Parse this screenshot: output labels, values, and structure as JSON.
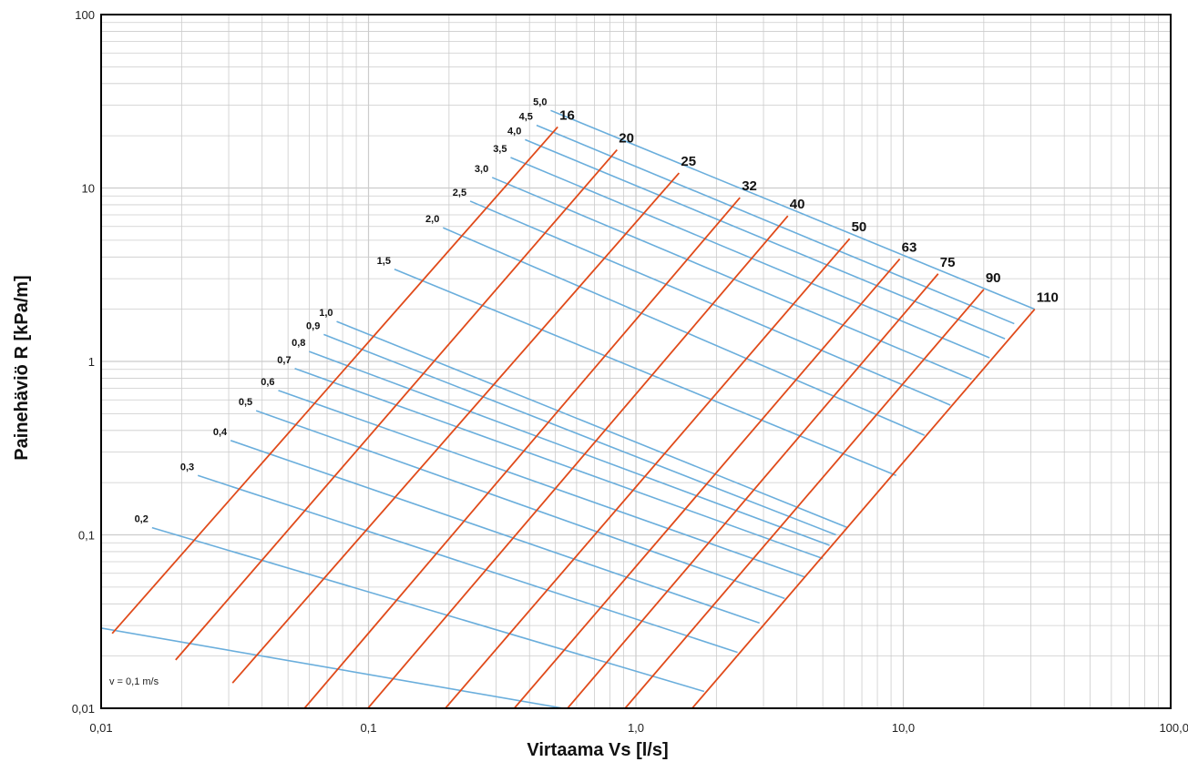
{
  "chart_data": {
    "type": "line",
    "xlabel": "Virtaama Vs [l/s]",
    "ylabel": "Painehäviö  R [kPa/m]",
    "x_scale": "log",
    "y_scale": "log",
    "xlim": [
      0.01,
      100
    ],
    "ylim": [
      0.01,
      100
    ],
    "x_tick_labels": [
      "0,01",
      "0,1",
      "1,0",
      "10,0",
      "100,0"
    ],
    "y_tick_labels": [
      "0,01",
      "0,1",
      "1",
      "10",
      "100"
    ],
    "grid": true,
    "note": "v = 0,1 m/s",
    "colors": {
      "pipe": "#e04a1a",
      "velocity": "#6aaedc",
      "grid": "#cccccc",
      "frame": "#000000"
    },
    "velocity_series": [
      {
        "label": "",
        "x": [
          0.01,
          0.7
        ],
        "y": [
          0.029,
          0.0093
        ]
      },
      {
        "label": "0,2",
        "x": [
          0.0155,
          1.8
        ],
        "y": [
          0.11,
          0.0125
        ]
      },
      {
        "label": "0,3",
        "x": [
          0.023,
          2.4
        ],
        "y": [
          0.22,
          0.021
        ]
      },
      {
        "label": "0,4",
        "x": [
          0.0305,
          2.9
        ],
        "y": [
          0.35,
          0.031
        ]
      },
      {
        "label": "0,5",
        "x": [
          0.038,
          3.6
        ],
        "y": [
          0.52,
          0.043
        ]
      },
      {
        "label": "0,6",
        "x": [
          0.046,
          4.3
        ],
        "y": [
          0.68,
          0.057
        ]
      },
      {
        "label": "0,7",
        "x": [
          0.053,
          5.0
        ],
        "y": [
          0.91,
          0.073
        ]
      },
      {
        "label": "0,8",
        "x": [
          0.06,
          5.3
        ],
        "y": [
          1.14,
          0.087
        ]
      },
      {
        "label": "0,9",
        "x": [
          0.068,
          5.6
        ],
        "y": [
          1.43,
          0.1
        ]
      },
      {
        "label": "1,0",
        "x": [
          0.076,
          6.2
        ],
        "y": [
          1.7,
          0.11
        ]
      },
      {
        "label": "1,5",
        "x": [
          0.125,
          9.4
        ],
        "y": [
          3.4,
          0.22
        ]
      },
      {
        "label": "2,0",
        "x": [
          0.19,
          12.0
        ],
        "y": [
          5.9,
          0.375
        ]
      },
      {
        "label": "2,5",
        "x": [
          0.24,
          15.0
        ],
        "y": [
          8.4,
          0.56
        ]
      },
      {
        "label": "3,0",
        "x": [
          0.29,
          18.0
        ],
        "y": [
          11.5,
          0.79
        ]
      },
      {
        "label": "3,5",
        "x": [
          0.34,
          21.0
        ],
        "y": [
          15.0,
          1.05
        ]
      },
      {
        "label": "4,0",
        "x": [
          0.385,
          24.0
        ],
        "y": [
          19.0,
          1.35
        ]
      },
      {
        "label": "4,5",
        "x": [
          0.425,
          26.0
        ],
        "y": [
          23.0,
          1.65
        ]
      },
      {
        "label": "5,0",
        "x": [
          0.48,
          31.0
        ],
        "y": [
          28.0,
          2.0
        ]
      }
    ],
    "pipe_series": [
      {
        "label": "16",
        "x": [
          0.011,
          0.51
        ],
        "y": [
          0.027,
          22.5
        ]
      },
      {
        "label": "20",
        "x": [
          0.019,
          0.85
        ],
        "y": [
          0.019,
          16.6
        ]
      },
      {
        "label": "25",
        "x": [
          0.031,
          1.45
        ],
        "y": [
          0.014,
          12.2
        ]
      },
      {
        "label": "32",
        "x": [
          0.055,
          2.45
        ],
        "y": [
          0.0092,
          8.8
        ]
      },
      {
        "label": "40",
        "x": [
          0.095,
          3.7
        ],
        "y": [
          0.0092,
          6.9
        ]
      },
      {
        "label": "50",
        "x": [
          0.185,
          6.3
        ],
        "y": [
          0.0092,
          5.1
        ]
      },
      {
        "label": "63",
        "x": [
          0.335,
          9.7
        ],
        "y": [
          0.0092,
          3.9
        ]
      },
      {
        "label": "75",
        "x": [
          0.53,
          13.5
        ],
        "y": [
          0.0092,
          3.2
        ]
      },
      {
        "label": "90",
        "x": [
          0.87,
          20.0
        ],
        "y": [
          0.0092,
          2.6
        ]
      },
      {
        "label": "110",
        "x": [
          1.55,
          31.0
        ],
        "y": [
          0.0092,
          2.0
        ]
      }
    ]
  }
}
